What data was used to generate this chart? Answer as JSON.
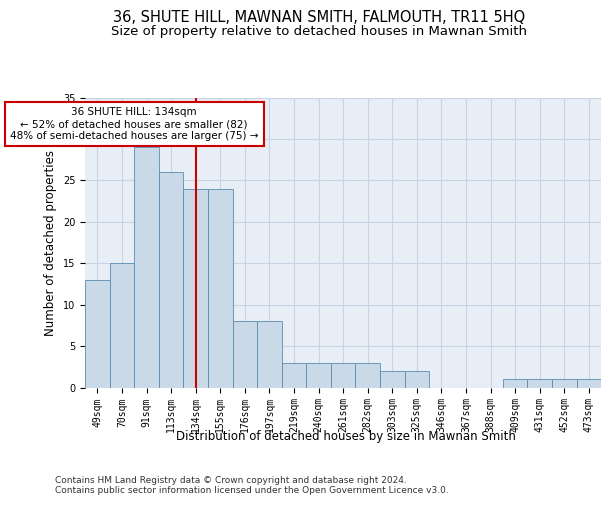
{
  "title": "36, SHUTE HILL, MAWNAN SMITH, FALMOUTH, TR11 5HQ",
  "subtitle": "Size of property relative to detached houses in Mawnan Smith",
  "xlabel": "Distribution of detached houses by size in Mawnan Smith",
  "ylabel": "Number of detached properties",
  "categories": [
    "49sqm",
    "70sqm",
    "91sqm",
    "113sqm",
    "134sqm",
    "155sqm",
    "176sqm",
    "197sqm",
    "219sqm",
    "240sqm",
    "261sqm",
    "282sqm",
    "303sqm",
    "325sqm",
    "346sqm",
    "367sqm",
    "388sqm",
    "409sqm",
    "431sqm",
    "452sqm",
    "473sqm"
  ],
  "values": [
    13,
    15,
    29,
    26,
    24,
    24,
    8,
    8,
    3,
    3,
    3,
    3,
    2,
    2,
    0,
    0,
    0,
    1,
    1,
    1,
    1
  ],
  "bar_facecolor": "#c9d9e8",
  "bar_edgecolor": "#5a8db0",
  "redline_category": "134sqm",
  "redline_color": "#cc0000",
  "annotation_text": "36 SHUTE HILL: 134sqm\n← 52% of detached houses are smaller (82)\n48% of semi-detached houses are larger (75) →",
  "annotation_boxcolor": "white",
  "annotation_edgecolor": "#cc0000",
  "ylim": [
    0,
    35
  ],
  "yticks": [
    0,
    5,
    10,
    15,
    20,
    25,
    30,
    35
  ],
  "grid_color": "#c8d4e4",
  "background_color": "#e8eef6",
  "footer": "Contains HM Land Registry data © Crown copyright and database right 2024.\nContains public sector information licensed under the Open Government Licence v3.0.",
  "title_fontsize": 10.5,
  "subtitle_fontsize": 9.5,
  "xlabel_fontsize": 8.5,
  "ylabel_fontsize": 8.5,
  "tick_fontsize": 7,
  "footer_fontsize": 6.5,
  "annotation_fontsize": 7.5
}
